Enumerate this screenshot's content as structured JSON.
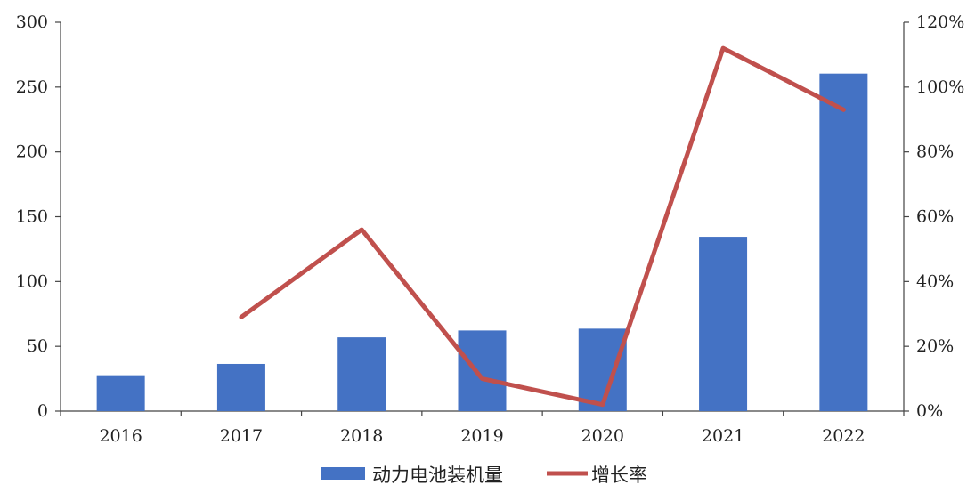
{
  "chart_data": {
    "type": "bar",
    "categories": [
      "2016",
      "2017",
      "2018",
      "2019",
      "2020",
      "2021",
      "2022"
    ],
    "series": [
      {
        "name": "动力电池装机量",
        "type": "bar",
        "axis": "left",
        "color": "#4472C4",
        "values": [
          27.7,
          36.4,
          56.9,
          62.2,
          63.6,
          134.5,
          260.4
        ]
      },
      {
        "name": "增长率",
        "type": "line",
        "axis": "right",
        "color": "#C0504D",
        "values": [
          null,
          0.29,
          0.56,
          0.1,
          0.02,
          1.12,
          0.93
        ]
      }
    ],
    "y_left": {
      "ylim": [
        0,
        300
      ],
      "ticks": [
        "0",
        "50",
        "100",
        "150",
        "200",
        "250",
        "300"
      ]
    },
    "y_right": {
      "ylim": [
        0,
        1.2
      ],
      "ticks": [
        "0%",
        "20%",
        "40%",
        "60%",
        "80%",
        "100%",
        "120%"
      ]
    },
    "grid": false,
    "legend_position": "bottom"
  }
}
